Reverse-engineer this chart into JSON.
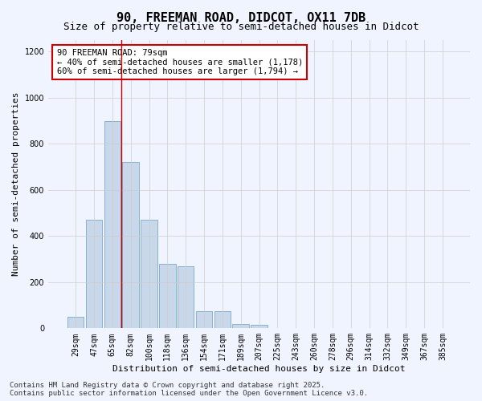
{
  "title": "90, FREEMAN ROAD, DIDCOT, OX11 7DB",
  "subtitle": "Size of property relative to semi-detached houses in Didcot",
  "xlabel": "Distribution of semi-detached houses by size in Didcot",
  "ylabel": "Number of semi-detached properties",
  "categories": [
    "29sqm",
    "47sqm",
    "65sqm",
    "82sqm",
    "100sqm",
    "118sqm",
    "136sqm",
    "154sqm",
    "171sqm",
    "189sqm",
    "207sqm",
    "225sqm",
    "243sqm",
    "260sqm",
    "278sqm",
    "296sqm",
    "314sqm",
    "332sqm",
    "349sqm",
    "367sqm",
    "385sqm"
  ],
  "values": [
    50,
    470,
    900,
    720,
    470,
    280,
    270,
    75,
    75,
    20,
    15,
    0,
    0,
    0,
    0,
    0,
    0,
    0,
    0,
    0,
    0
  ],
  "bar_color": "#c8d8ea",
  "bar_edge_color": "#7aaac8",
  "vline_x": 2.5,
  "vline_color": "#cc0000",
  "annotation_text": "90 FREEMAN ROAD: 79sqm\n← 40% of semi-detached houses are smaller (1,178)\n60% of semi-detached houses are larger (1,794) →",
  "annotation_box_color": "#ffffff",
  "annotation_box_edge_color": "#cc0000",
  "ylim": [
    0,
    1250
  ],
  "yticks": [
    0,
    200,
    400,
    600,
    800,
    1000,
    1200
  ],
  "footer_text": "Contains HM Land Registry data © Crown copyright and database right 2025.\nContains public sector information licensed under the Open Government Licence v3.0.",
  "background_color": "#f0f4ff",
  "grid_color": "#cccccc",
  "title_fontsize": 11,
  "subtitle_fontsize": 9,
  "axis_label_fontsize": 8,
  "tick_fontsize": 7,
  "footer_fontsize": 6.5,
  "ann_fontsize": 7.5
}
